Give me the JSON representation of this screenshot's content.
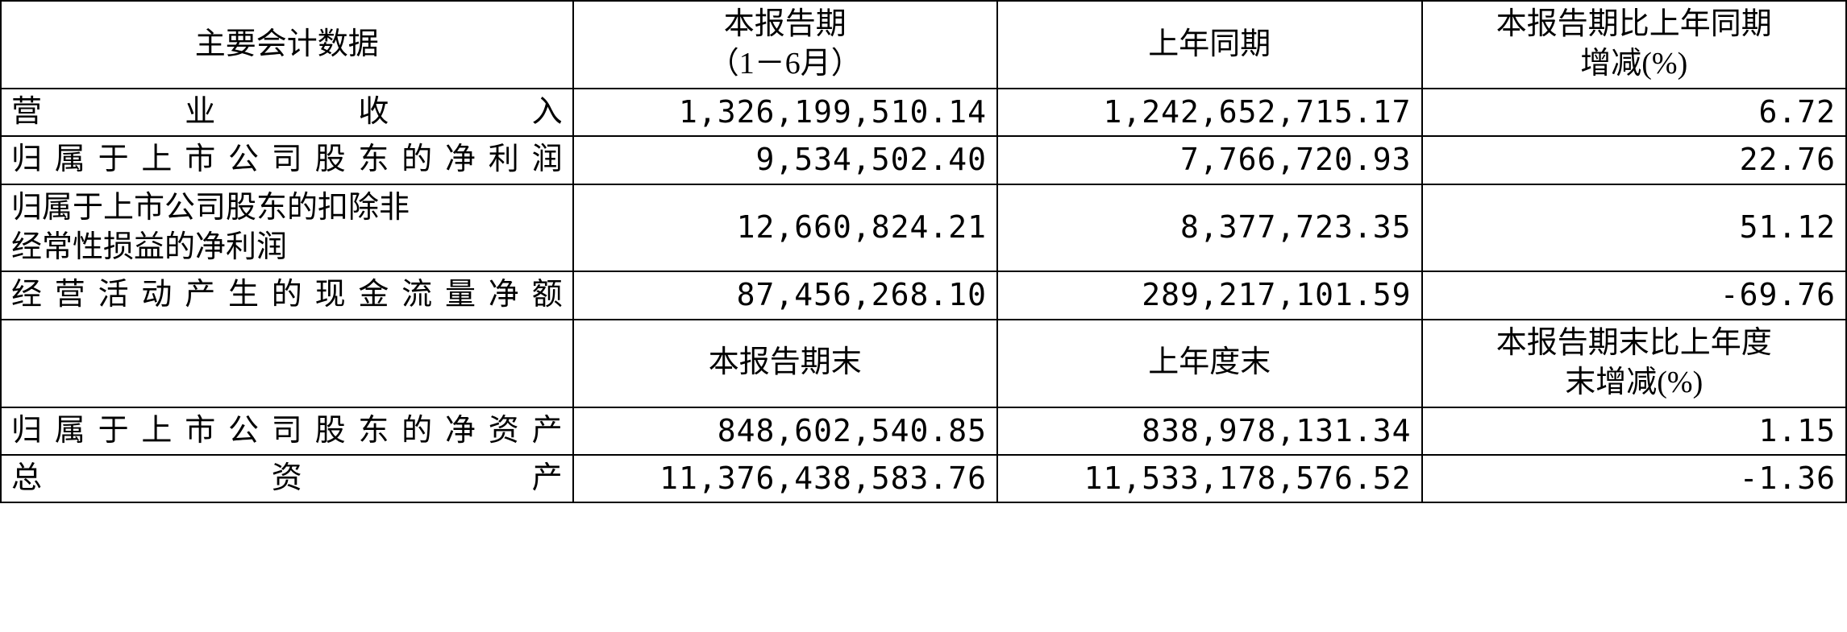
{
  "table": {
    "border_color": "#000000",
    "background_color": "#ffffff",
    "text_color": "#000000",
    "font_size_pt": 28,
    "columns": [
      {
        "key": "label",
        "width_pct": 31,
        "align": "left"
      },
      {
        "key": "current",
        "width_pct": 23,
        "align": "right"
      },
      {
        "key": "prior",
        "width_pct": 23,
        "align": "right"
      },
      {
        "key": "change",
        "width_pct": 23,
        "align": "right"
      }
    ],
    "header1": {
      "label": "主要会计数据",
      "current_line1": "本报告期",
      "current_line2": "（1－6月）",
      "prior": "上年同期",
      "change_line1": "本报告期比上年同期",
      "change_line2": "增减(%)"
    },
    "rows1": [
      {
        "label": "营业收入",
        "current": "1,326,199,510.14",
        "prior": "1,242,652,715.17",
        "change": "6.72"
      },
      {
        "label": "归属于上市公司股东的净利润",
        "current": "9,534,502.40",
        "prior": "7,766,720.93",
        "change": "22.76"
      },
      {
        "label_line1": "归属于上市公司股东的扣除非",
        "label_line2": "经常性损益的净利润",
        "current": "12,660,824.21",
        "prior": "8,377,723.35",
        "change": "51.12"
      },
      {
        "label": "经营活动产生的现金流量净额",
        "current": "87,456,268.10",
        "prior": "289,217,101.59",
        "change": "-69.76"
      }
    ],
    "header2": {
      "label": "",
      "current": "本报告期末",
      "prior": "上年度末",
      "change_line1": "本报告期末比上年度",
      "change_line2": "末增减(%)"
    },
    "rows2": [
      {
        "label": "归属于上市公司股东的净资产",
        "current": "848,602,540.85",
        "prior": "838,978,131.34",
        "change": "1.15"
      },
      {
        "label": "总资产",
        "current": "11,376,438,583.76",
        "prior": "11,533,178,576.52",
        "change": "-1.36"
      }
    ]
  }
}
